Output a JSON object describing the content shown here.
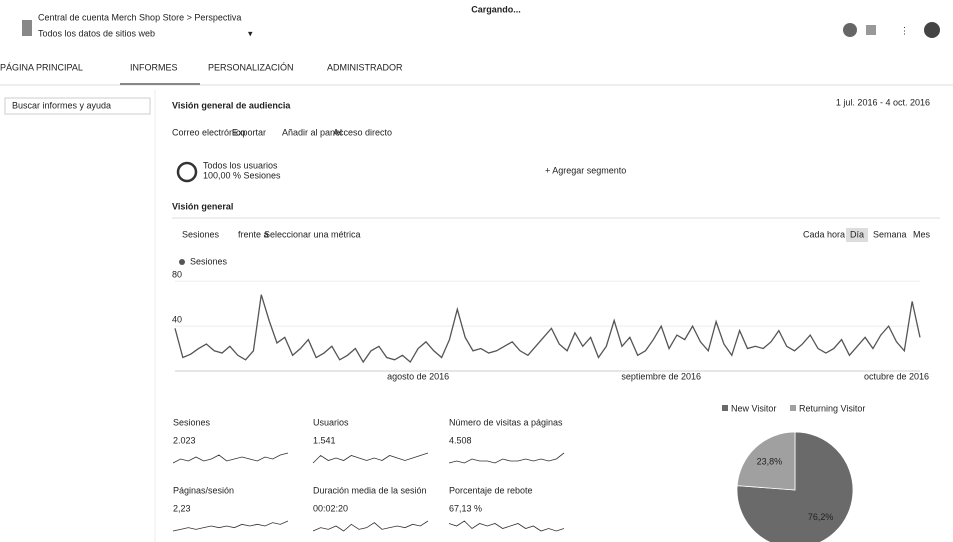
{
  "header": {
    "breadcrumb": "Central de cuenta Merch Shop Store > Perspectiva",
    "title": "Todos los datos de sitios web",
    "loading": "Cargando..."
  },
  "nav": [
    "PÁGINA PRINCIPAL",
    "INFORMES",
    "PERSONALIZACIÓN",
    "ADMINISTRADOR"
  ],
  "sidebar": {
    "search": "Buscar informes y ayuda"
  },
  "report": {
    "title": "Visión general de audiencia",
    "date_range": "1 jul. 2016 - 4 oct. 2016",
    "actions": [
      "Correo electrónico",
      "Exportar",
      "Añadir al panel",
      "Acceso directo"
    ],
    "segment": {
      "name": "Todos los usuarios",
      "detail": "100,00 % Sesiones",
      "add": "+ Agregar segmento"
    },
    "tab": "Visión general",
    "metric": "Sesiones",
    "versus": "frente a",
    "select_metric": "Seleccionar una métrica",
    "periods": [
      "Cada hora",
      "Día",
      "Semana",
      "Mes"
    ]
  },
  "chart_data": {
    "type": "line",
    "ylim": [
      0,
      90
    ],
    "yticks": [
      40,
      80
    ],
    "grid": true,
    "categories": [
      null,
      null,
      null,
      null,
      null,
      null,
      null,
      null,
      null,
      null,
      null,
      null,
      null,
      null,
      null,
      null,
      null,
      null,
      null,
      null,
      null,
      null,
      null,
      null,
      null,
      null,
      null,
      null,
      null,
      null,
      null,
      "agosto de 2016",
      null,
      null,
      null,
      null,
      null,
      null,
      null,
      null,
      null,
      null,
      null,
      null,
      null,
      null,
      null,
      null,
      null,
      null,
      null,
      null,
      null,
      null,
      null,
      null,
      null,
      null,
      null,
      null,
      null,
      null,
      "septiembre de 2016",
      null,
      null,
      null,
      null,
      null,
      null,
      null,
      null,
      null,
      null,
      null,
      null,
      null,
      null,
      null,
      null,
      null,
      null,
      null,
      null,
      null,
      null,
      null,
      null,
      null,
      null,
      null,
      null,
      null,
      "octubre de 2016",
      null,
      null,
      null
    ],
    "series": [
      {
        "name": "Sesiones",
        "color": "#555555",
        "values": [
          38,
          12,
          15,
          20,
          24,
          18,
          16,
          22,
          14,
          10,
          18,
          68,
          45,
          25,
          30,
          14,
          20,
          28,
          12,
          16,
          22,
          10,
          14,
          20,
          8,
          18,
          22,
          12,
          10,
          14,
          8,
          20,
          26,
          18,
          12,
          28,
          55,
          30,
          18,
          20,
          16,
          18,
          22,
          26,
          18,
          14,
          22,
          30,
          38,
          24,
          18,
          34,
          22,
          30,
          12,
          22,
          45,
          22,
          30,
          14,
          18,
          28,
          40,
          20,
          32,
          28,
          40,
          26,
          18,
          44,
          24,
          14,
          36,
          20,
          22,
          20,
          26,
          36,
          22,
          18,
          24,
          32,
          20,
          16,
          20,
          28,
          14,
          22,
          30,
          20,
          32,
          40,
          26,
          18,
          62,
          30
        ]
      }
    ]
  },
  "metrics": [
    {
      "name": "Sesiones",
      "value": "2.023",
      "spark": [
        4,
        6,
        5,
        7,
        5,
        6,
        8,
        5,
        6,
        7,
        6,
        5,
        7,
        6,
        8,
        9
      ]
    },
    {
      "name": "Usuarios",
      "value": "1.541",
      "spark": [
        4,
        7,
        5,
        6,
        5,
        7,
        6,
        5,
        6,
        5,
        7,
        6,
        5,
        6,
        7,
        8
      ]
    },
    {
      "name": "Número de visitas a páginas",
      "value": "4.508",
      "spark": [
        4,
        5,
        4,
        6,
        5,
        5,
        4,
        6,
        5,
        5,
        6,
        5,
        6,
        5,
        6,
        9
      ]
    },
    {
      "name": "Páginas/sesión",
      "value": "2,23",
      "spark": [
        3,
        4,
        5,
        4,
        5,
        6,
        5,
        6,
        5,
        7,
        6,
        7,
        6,
        8,
        7,
        9
      ]
    },
    {
      "name": "Duración media de la sesión",
      "value": "00:02:20",
      "spark": [
        3,
        5,
        4,
        6,
        3,
        7,
        4,
        5,
        8,
        4,
        5,
        6,
        5,
        7,
        6,
        9
      ]
    },
    {
      "name": "Porcentaje de rebote",
      "value": "67,13 %",
      "spark": [
        8,
        7,
        9,
        6,
        8,
        7,
        8,
        6,
        7,
        8,
        6,
        7,
        5,
        6,
        5,
        6
      ]
    }
  ],
  "pie_data": {
    "type": "pie",
    "categories": [
      "New Visitor",
      "Returning Visitor"
    ],
    "values": [
      76.2,
      23.8
    ],
    "value_labels": [
      "76,2%",
      "23,8%"
    ],
    "colors": [
      "#6a6a6a",
      "#a0a0a0"
    ]
  }
}
